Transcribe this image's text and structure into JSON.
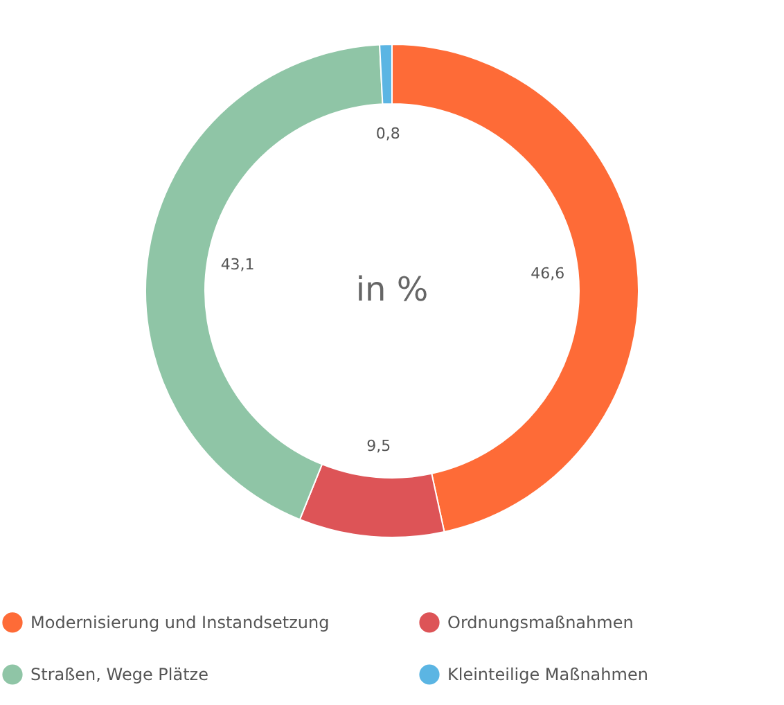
{
  "chart_data": {
    "type": "donut",
    "categories": [
      "Modernisierung und Instandsetzung",
      "Ordnungsmaßnahmen",
      "Straßen, Wege Plätze",
      "Kleinteilige Maßnahmen"
    ],
    "values": [
      46.6,
      9.5,
      43.1,
      0.8
    ],
    "colors": [
      "#fe6b37",
      "#dd5457",
      "#8fc5a6",
      "#5bb5e3"
    ],
    "value_labels": [
      "46,6",
      "9,5",
      "43,1",
      "0,8"
    ],
    "legend": "bottom",
    "annotations": [
      "in %"
    ]
  }
}
